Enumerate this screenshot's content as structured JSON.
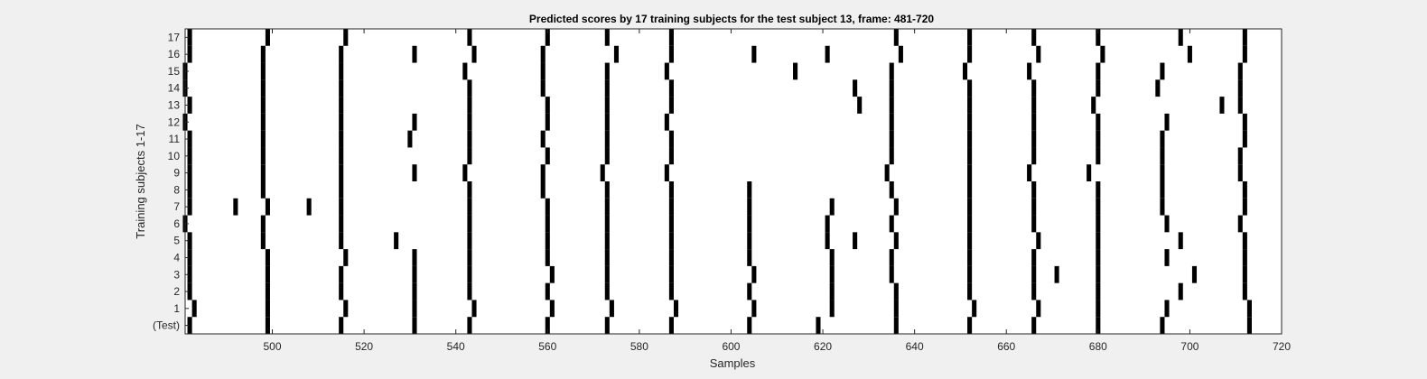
{
  "chart_data": {
    "type": "raster",
    "title": "Predicted scores by 17 training subjects for the test subject 13, frame: 481-720",
    "xlabel": "Samples",
    "ylabel": "Training subjects 1-17",
    "xlim": [
      481,
      720
    ],
    "xticks": [
      500,
      520,
      540,
      560,
      580,
      600,
      620,
      640,
      660,
      680,
      700,
      720
    ],
    "row_labels": [
      "(Test)",
      "1",
      "2",
      "3",
      "4",
      "5",
      "6",
      "7",
      "8",
      "9",
      "10",
      "11",
      "12",
      "13",
      "14",
      "15",
      "16",
      "17"
    ],
    "background_color": "#ffffff",
    "mark_color": "#000000",
    "grid": false,
    "rows": [
      {
        "label": "(Test)",
        "x": [
          482,
          499,
          515,
          531,
          543,
          560,
          573,
          587,
          604,
          619,
          636,
          652,
          666,
          680,
          694,
          713
        ]
      },
      {
        "label": "1",
        "x": [
          483,
          499,
          516,
          531,
          544,
          561,
          574,
          588,
          605,
          622,
          636,
          653,
          667,
          680,
          695,
          713
        ]
      },
      {
        "label": "2",
        "x": [
          482,
          499,
          515,
          531,
          543,
          560,
          573,
          587,
          604,
          622,
          636,
          652,
          666,
          680,
          698,
          712
        ]
      },
      {
        "label": "3",
        "x": [
          482,
          499,
          515,
          531,
          543,
          561,
          573,
          587,
          605,
          622,
          635,
          652,
          666,
          671,
          680,
          701,
          712
        ]
      },
      {
        "label": "4",
        "x": [
          482,
          499,
          516,
          531,
          543,
          560,
          573,
          587,
          604,
          622,
          635,
          652,
          666,
          680,
          695,
          712
        ]
      },
      {
        "label": "5",
        "x": [
          482,
          498,
          515,
          527,
          543,
          560,
          573,
          587,
          604,
          621,
          627,
          636,
          652,
          667,
          680,
          698,
          712
        ]
      },
      {
        "label": "6",
        "x": [
          481,
          498,
          515,
          543,
          560,
          573,
          587,
          604,
          621,
          635,
          652,
          666,
          680,
          695,
          711
        ]
      },
      {
        "label": "7",
        "x": [
          482,
          492,
          499,
          508,
          515,
          543,
          560,
          573,
          587,
          604,
          622,
          636,
          652,
          666,
          680,
          694,
          712
        ]
      },
      {
        "label": "8",
        "x": [
          482,
          498,
          515,
          543,
          559,
          573,
          587,
          604,
          635,
          652,
          666,
          680,
          694,
          712
        ]
      },
      {
        "label": "9",
        "x": [
          482,
          498,
          515,
          531,
          542,
          559,
          572,
          586,
          634,
          652,
          665,
          678,
          694,
          711
        ]
      },
      {
        "label": "10",
        "x": [
          482,
          498,
          515,
          543,
          560,
          573,
          587,
          635,
          652,
          666,
          680,
          694,
          711
        ]
      },
      {
        "label": "11",
        "x": [
          482,
          498,
          515,
          530,
          543,
          559,
          573,
          587,
          635,
          652,
          666,
          680,
          694,
          712
        ]
      },
      {
        "label": "12",
        "x": [
          481,
          498,
          515,
          531,
          543,
          560,
          573,
          586,
          635,
          652,
          666,
          680,
          695,
          712
        ]
      },
      {
        "label": "13",
        "x": [
          482,
          498,
          515,
          543,
          560,
          573,
          587,
          628,
          635,
          652,
          666,
          679,
          707,
          711
        ]
      },
      {
        "label": "14",
        "x": [
          481,
          498,
          515,
          543,
          559,
          573,
          587,
          627,
          635,
          652,
          666,
          680,
          693,
          711
        ]
      },
      {
        "label": "15",
        "x": [
          481,
          498,
          515,
          542,
          559,
          573,
          586,
          614,
          635,
          651,
          665,
          680,
          694,
          711
        ]
      },
      {
        "label": "16",
        "x": [
          482,
          498,
          515,
          531,
          544,
          559,
          575,
          587,
          605,
          621,
          637,
          652,
          667,
          681,
          700,
          712
        ]
      },
      {
        "label": "17",
        "x": [
          482,
          499,
          516,
          543,
          560,
          573,
          587,
          636,
          652,
          666,
          680,
          698,
          712
        ]
      }
    ]
  }
}
